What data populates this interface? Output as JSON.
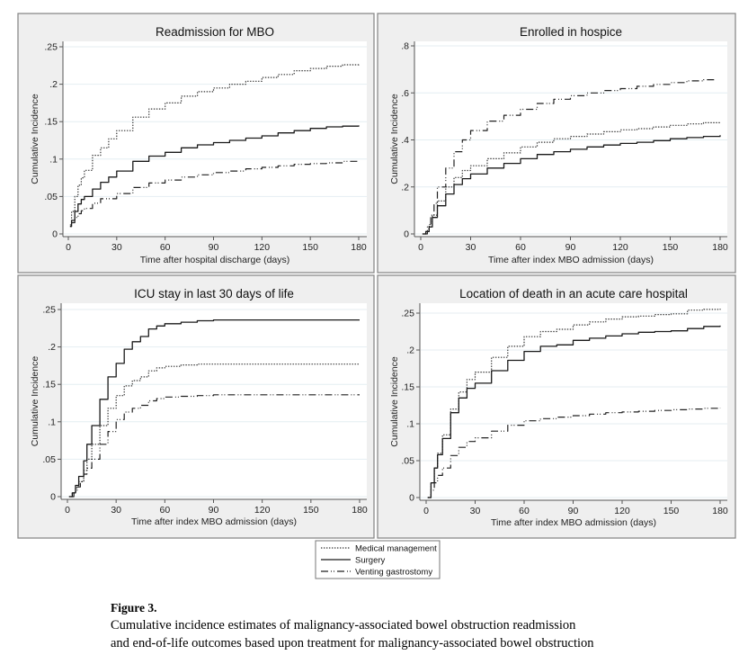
{
  "caption": {
    "label": "Figure 3.",
    "line1": "Cumulative incidence estimates of malignancy-associated bowel obstruction readmission",
    "line2": "and end-of-life outcomes based upon treatment for malignancy-associated bowel obstruction"
  },
  "legend": {
    "placement": "bottom-center",
    "items": [
      {
        "key": "medical",
        "label": "Medical management",
        "style": "dotted"
      },
      {
        "key": "surgery",
        "label": "Surgery",
        "style": "solid"
      },
      {
        "key": "venting",
        "label": "Venting gastrostomy",
        "style": "dash-dot-dot"
      }
    ]
  },
  "chart_data": [
    {
      "type": "line",
      "title": "Readmission for MBO",
      "xlabel": "Time after hospital discharge (days)",
      "ylabel": "Cumulative Incidence",
      "xlim": [
        0,
        180
      ],
      "ylim": [
        0,
        0.25
      ],
      "xticks": [
        0,
        30,
        60,
        90,
        120,
        150,
        180
      ],
      "xtick_labels": [
        "0",
        "30",
        "60",
        "90",
        "120",
        "150",
        "180"
      ],
      "yticks": [
        0,
        0.05,
        0.1,
        0.15,
        0.2,
        0.25
      ],
      "ytick_labels": [
        "0",
        ".05",
        ".1",
        ".15",
        ".2",
        ".25"
      ],
      "grid": true,
      "series": [
        {
          "key": "medical",
          "name": "Medical management",
          "x": [
            1,
            2,
            4,
            6,
            8,
            10,
            15,
            20,
            25,
            30,
            40,
            50,
            60,
            70,
            80,
            90,
            100,
            110,
            120,
            130,
            140,
            150,
            160,
            170,
            180
          ],
          "y": [
            0.012,
            0.03,
            0.05,
            0.065,
            0.075,
            0.085,
            0.105,
            0.115,
            0.127,
            0.138,
            0.156,
            0.167,
            0.175,
            0.184,
            0.19,
            0.195,
            0.2,
            0.204,
            0.209,
            0.213,
            0.218,
            0.221,
            0.224,
            0.226,
            0.228
          ]
        },
        {
          "key": "surgery",
          "name": "Surgery",
          "x": [
            1,
            2,
            4,
            6,
            8,
            10,
            15,
            20,
            25,
            30,
            40,
            50,
            60,
            70,
            80,
            90,
            100,
            110,
            120,
            130,
            140,
            150,
            160,
            170,
            180
          ],
          "y": [
            0.01,
            0.018,
            0.03,
            0.04,
            0.046,
            0.05,
            0.06,
            0.069,
            0.076,
            0.084,
            0.097,
            0.104,
            0.109,
            0.115,
            0.119,
            0.122,
            0.125,
            0.128,
            0.131,
            0.135,
            0.138,
            0.141,
            0.143,
            0.144,
            0.145
          ]
        },
        {
          "key": "venting",
          "name": "Venting gastrostomy",
          "x": [
            2,
            4,
            6,
            8,
            10,
            15,
            20,
            30,
            40,
            50,
            60,
            70,
            80,
            90,
            100,
            110,
            120,
            130,
            140,
            150,
            160,
            170,
            180
          ],
          "y": [
            0.015,
            0.022,
            0.027,
            0.031,
            0.034,
            0.041,
            0.047,
            0.054,
            0.062,
            0.068,
            0.072,
            0.076,
            0.079,
            0.082,
            0.084,
            0.087,
            0.089,
            0.091,
            0.093,
            0.094,
            0.095,
            0.097,
            0.098
          ]
        }
      ]
    },
    {
      "type": "line",
      "title": "Enrolled in hospice",
      "xlabel": "Time after index MBO admission (days)",
      "ylabel": "Cumulative Incidence",
      "xlim": [
        0,
        180
      ],
      "ylim": [
        0,
        0.8
      ],
      "xticks": [
        0,
        30,
        60,
        90,
        120,
        150,
        180
      ],
      "xtick_labels": [
        "0",
        "30",
        "60",
        "90",
        "120",
        "150",
        "180"
      ],
      "yticks": [
        0,
        0.2,
        0.4,
        0.6,
        0.8
      ],
      "ytick_labels": [
        "0",
        ".2",
        ".4",
        ".6",
        ".8"
      ],
      "grid": true,
      "series": [
        {
          "key": "medical",
          "name": "Medical management",
          "x": [
            1,
            3,
            5,
            7,
            10,
            15,
            20,
            25,
            30,
            40,
            50,
            60,
            70,
            80,
            90,
            100,
            110,
            120,
            130,
            140,
            150,
            160,
            170,
            180
          ],
          "y": [
            0.0,
            0.01,
            0.04,
            0.08,
            0.14,
            0.2,
            0.24,
            0.27,
            0.29,
            0.32,
            0.345,
            0.37,
            0.39,
            0.405,
            0.415,
            0.425,
            0.435,
            0.443,
            0.448,
            0.455,
            0.462,
            0.468,
            0.473,
            0.478
          ]
        },
        {
          "key": "surgery",
          "name": "Surgery",
          "x": [
            1,
            3,
            5,
            7,
            10,
            15,
            20,
            25,
            30,
            40,
            50,
            60,
            70,
            80,
            90,
            100,
            110,
            120,
            130,
            140,
            150,
            160,
            170,
            180
          ],
          "y": [
            0.0,
            0.01,
            0.03,
            0.07,
            0.12,
            0.17,
            0.21,
            0.235,
            0.255,
            0.28,
            0.3,
            0.32,
            0.338,
            0.35,
            0.36,
            0.37,
            0.378,
            0.385,
            0.39,
            0.397,
            0.405,
            0.41,
            0.415,
            0.42
          ]
        },
        {
          "key": "venting",
          "name": "Venting gastrostomy",
          "x": [
            2,
            4,
            6,
            8,
            10,
            15,
            20,
            25,
            30,
            40,
            50,
            60,
            70,
            80,
            90,
            100,
            110,
            120,
            130,
            140,
            150,
            160,
            170,
            177
          ],
          "y": [
            0.0,
            0.03,
            0.08,
            0.13,
            0.2,
            0.28,
            0.35,
            0.4,
            0.44,
            0.48,
            0.505,
            0.53,
            0.555,
            0.573,
            0.588,
            0.6,
            0.61,
            0.618,
            0.628,
            0.636,
            0.644,
            0.651,
            0.656,
            0.66
          ]
        }
      ]
    },
    {
      "type": "line",
      "title": "ICU stay in last 30 days of life",
      "xlabel": "Time after index MBO admission (days)",
      "ylabel": "Cumulative Incidence",
      "xlim": [
        0,
        180
      ],
      "ylim": [
        0,
        0.25
      ],
      "xticks": [
        0,
        30,
        60,
        90,
        120,
        150,
        180
      ],
      "xtick_labels": [
        "0",
        "30",
        "60",
        "90",
        "120",
        "150",
        "180"
      ],
      "yticks": [
        0,
        0.05,
        0.1,
        0.15,
        0.2,
        0.25
      ],
      "ytick_labels": [
        "0",
        ".05",
        ".1",
        ".15",
        ".2",
        ".25"
      ],
      "grid": true,
      "series": [
        {
          "key": "medical",
          "name": "Medical management",
          "x": [
            1,
            3,
            5,
            7,
            10,
            12,
            15,
            20,
            25,
            30,
            35,
            40,
            45,
            50,
            55,
            60,
            70,
            80,
            90,
            120,
            150,
            180
          ],
          "y": [
            0.0,
            0.005,
            0.012,
            0.02,
            0.035,
            0.05,
            0.07,
            0.095,
            0.118,
            0.135,
            0.148,
            0.155,
            0.16,
            0.168,
            0.172,
            0.174,
            0.176,
            0.177,
            0.177,
            0.177,
            0.177,
            0.177
          ]
        },
        {
          "key": "surgery",
          "name": "Surgery",
          "x": [
            1,
            3,
            5,
            7,
            10,
            12,
            15,
            20,
            25,
            30,
            35,
            40,
            45,
            50,
            55,
            60,
            70,
            80,
            90,
            120,
            150,
            180
          ],
          "y": [
            0.0,
            0.005,
            0.015,
            0.027,
            0.048,
            0.07,
            0.095,
            0.13,
            0.16,
            0.178,
            0.197,
            0.207,
            0.214,
            0.224,
            0.228,
            0.231,
            0.233,
            0.235,
            0.236,
            0.236,
            0.236,
            0.236
          ]
        },
        {
          "key": "venting",
          "name": "Venting gastrostomy",
          "x": [
            2,
            4,
            6,
            8,
            10,
            12,
            15,
            20,
            25,
            30,
            35,
            40,
            45,
            50,
            55,
            60,
            70,
            80,
            90,
            120,
            150,
            180
          ],
          "y": [
            0.0,
            0.007,
            0.013,
            0.02,
            0.03,
            0.038,
            0.05,
            0.07,
            0.087,
            0.103,
            0.113,
            0.118,
            0.122,
            0.128,
            0.131,
            0.133,
            0.134,
            0.135,
            0.136,
            0.136,
            0.136,
            0.136
          ]
        }
      ]
    },
    {
      "type": "line",
      "title": "Location of death in an acute care hospital",
      "xlabel": "Time after index MBO admission (days)",
      "ylabel": "Cumulative Incidence",
      "xlim": [
        0,
        180
      ],
      "ylim": [
        0,
        0.25
      ],
      "xticks": [
        0,
        30,
        60,
        90,
        120,
        150,
        180
      ],
      "xtick_labels": [
        "0",
        "30",
        "60",
        "90",
        "120",
        "150",
        "180"
      ],
      "yticks": [
        0,
        0.05,
        0.1,
        0.15,
        0.2,
        0.25
      ],
      "ytick_labels": [
        "0",
        ".05",
        ".1",
        ".15",
        ".2",
        ".25"
      ],
      "grid": true,
      "series": [
        {
          "key": "medical",
          "name": "Medical management",
          "x": [
            1,
            3,
            5,
            7,
            10,
            15,
            20,
            25,
            30,
            40,
            50,
            60,
            70,
            80,
            90,
            100,
            110,
            120,
            130,
            140,
            150,
            160,
            170,
            180
          ],
          "y": [
            0.0,
            0.02,
            0.04,
            0.06,
            0.085,
            0.12,
            0.143,
            0.16,
            0.17,
            0.19,
            0.205,
            0.218,
            0.225,
            0.228,
            0.234,
            0.238,
            0.242,
            0.245,
            0.246,
            0.248,
            0.249,
            0.254,
            0.255,
            0.256
          ]
        },
        {
          "key": "surgery",
          "name": "Surgery",
          "x": [
            1,
            3,
            5,
            7,
            10,
            15,
            20,
            25,
            30,
            40,
            50,
            60,
            70,
            80,
            90,
            100,
            110,
            120,
            130,
            140,
            150,
            160,
            170,
            180
          ],
          "y": [
            0.0,
            0.02,
            0.04,
            0.058,
            0.08,
            0.115,
            0.135,
            0.148,
            0.155,
            0.172,
            0.186,
            0.198,
            0.205,
            0.207,
            0.213,
            0.216,
            0.219,
            0.222,
            0.224,
            0.225,
            0.226,
            0.229,
            0.232,
            0.233
          ]
        },
        {
          "key": "venting",
          "name": "Venting gastrostomy",
          "x": [
            1,
            3,
            5,
            7,
            10,
            15,
            20,
            25,
            30,
            40,
            50,
            60,
            70,
            80,
            90,
            100,
            110,
            120,
            130,
            140,
            150,
            160,
            170,
            180
          ],
          "y": [
            0.0,
            0.01,
            0.02,
            0.03,
            0.04,
            0.057,
            0.068,
            0.076,
            0.081,
            0.09,
            0.098,
            0.104,
            0.107,
            0.109,
            0.111,
            0.113,
            0.115,
            0.116,
            0.117,
            0.118,
            0.119,
            0.12,
            0.121,
            0.122
          ]
        }
      ]
    }
  ]
}
